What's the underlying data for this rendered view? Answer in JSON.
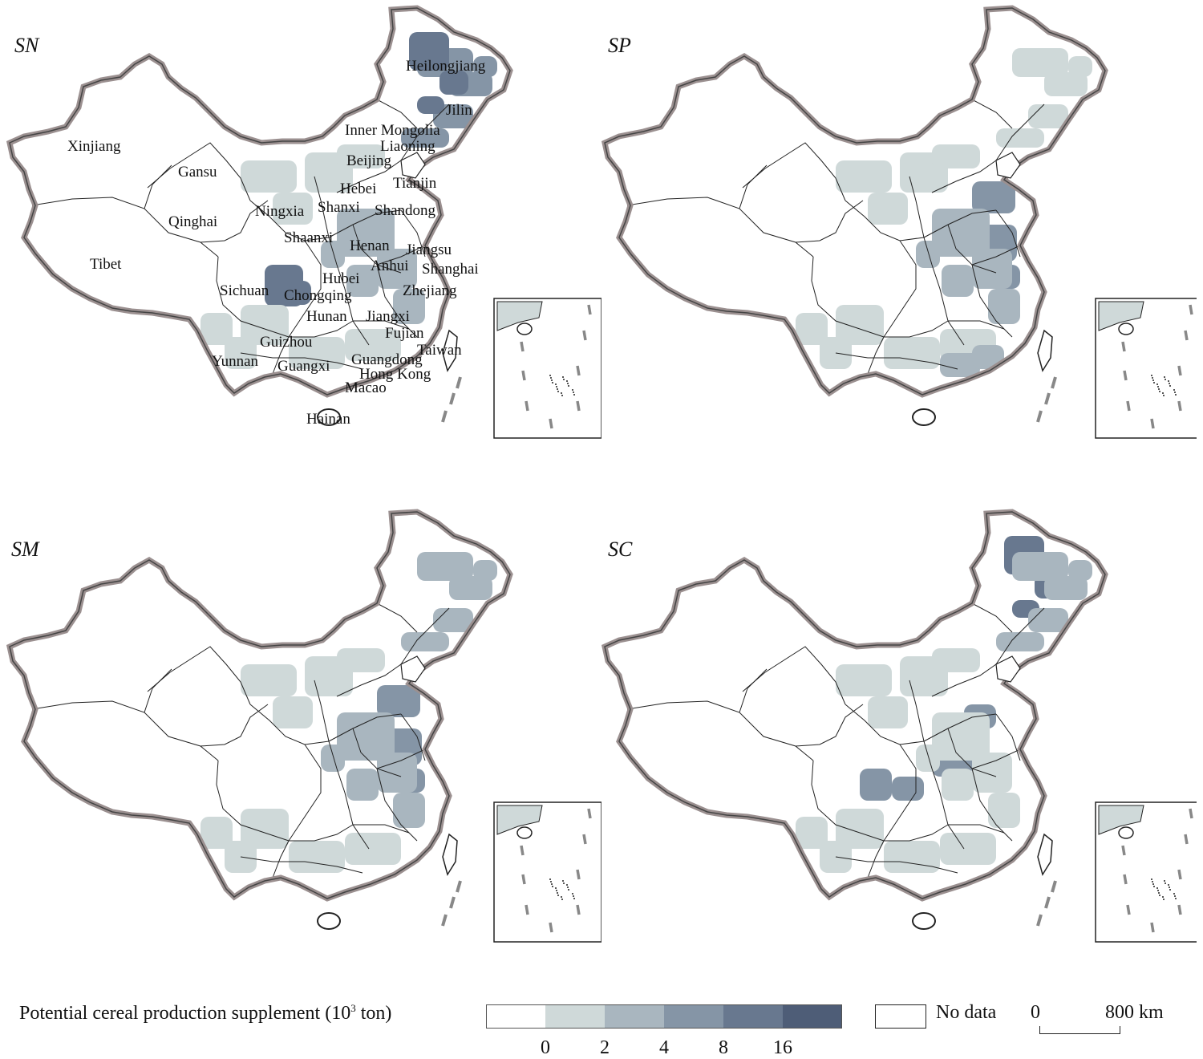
{
  "panels": [
    {
      "label": "SN",
      "shading": [
        {
          "region": "northeast",
          "level": 3
        },
        {
          "region": "northeast-core",
          "level": 4
        },
        {
          "region": "sichuan",
          "level": 4
        },
        {
          "region": "east",
          "level": 2
        },
        {
          "region": "north",
          "level": 1
        },
        {
          "region": "south",
          "level": 1
        }
      ]
    },
    {
      "label": "SP",
      "shading": [
        {
          "region": "shandong-jiangsu",
          "level": 3
        },
        {
          "region": "east",
          "level": 2
        },
        {
          "region": "north",
          "level": 1
        },
        {
          "region": "south",
          "level": 1
        },
        {
          "region": "northeast",
          "level": 1
        },
        {
          "region": "guangdong",
          "level": 2
        }
      ]
    },
    {
      "label": "SM",
      "shading": [
        {
          "region": "shandong-jiangsu",
          "level": 3
        },
        {
          "region": "east",
          "level": 2
        },
        {
          "region": "northeast",
          "level": 2
        },
        {
          "region": "north",
          "level": 1
        },
        {
          "region": "south",
          "level": 1
        }
      ]
    },
    {
      "label": "SC",
      "shading": [
        {
          "region": "northeast-core",
          "level": 4
        },
        {
          "region": "northeast",
          "level": 2
        },
        {
          "region": "central",
          "level": 3
        },
        {
          "region": "east",
          "level": 1
        },
        {
          "region": "north",
          "level": 1
        },
        {
          "region": "south",
          "level": 1
        }
      ]
    }
  ],
  "province_labels": [
    "Heilongjiang",
    "Jilin",
    "Inner Mongolia",
    "Liaoning",
    "Xinjiang",
    "Gansu",
    "Beijing",
    "Tianjin",
    "Hebei",
    "Ningxia",
    "Shanxi",
    "Shandong",
    "Qinghai",
    "Shaanxi",
    "Henan",
    "Jiangsu",
    "Tibet",
    "Anhui",
    "Shanghai",
    "Hubei",
    "Sichuan",
    "Chongqing",
    "Zhejiang",
    "Hunan",
    "Jiangxi",
    "Fujian",
    "Guizhou",
    "Taiwan",
    "Yunnan",
    "Guangdong",
    "Guangxi",
    "Hong Kong",
    "Macao",
    "Hainan"
  ],
  "legend": {
    "title": "Potential cereal production supplement (10",
    "title_sup": "3",
    "title_unit": " ton)",
    "ticks": [
      "0",
      "2",
      "4",
      "8",
      "16"
    ],
    "colors": [
      "#ffffff",
      "#cfd9d9",
      "#a9b6bf",
      "#8595a6",
      "#68788f",
      "#4e5d77"
    ],
    "nodata_label": "No data"
  },
  "scale_bar": {
    "zero": "0",
    "distance": "800 km"
  }
}
